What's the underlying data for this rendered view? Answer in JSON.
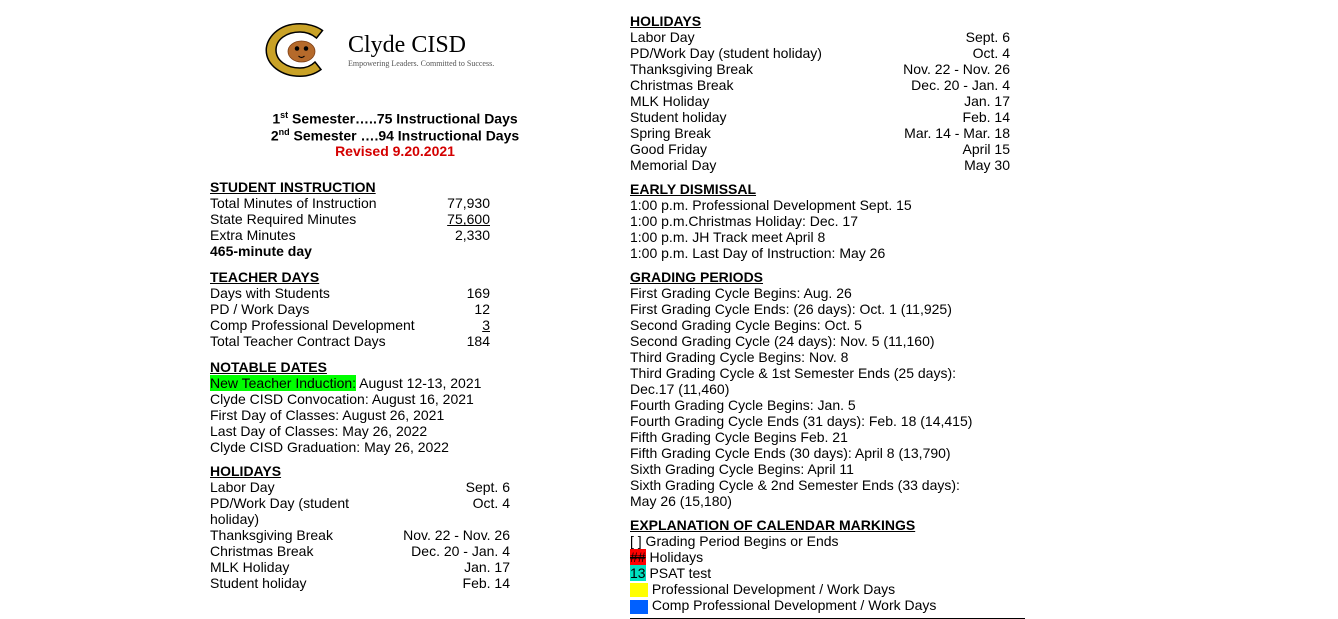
{
  "logo": {
    "title": "Clyde CISD",
    "subtitle": "Empowering Leaders. Committed to Success.",
    "colors": {
      "gold": "#c9a227",
      "brown": "#7a3b12",
      "outline": "#000"
    }
  },
  "semesters": {
    "line1_pre": "1",
    "line1_sup": "st",
    "line1_rest": " Semester…..75 Instructional Days",
    "line2_pre": "2",
    "line2_sup": "nd",
    "line2_rest": " Semester ….94 Instructional Days",
    "revised": "Revised 9.20.2021"
  },
  "student_instruction": {
    "heading": "STUDENT INSTRUCTION",
    "rows": [
      {
        "label": "Total Minutes of Instruction",
        "value": "77,930"
      },
      {
        "label": "State Required Minutes",
        "value": "75,600",
        "underline": true
      },
      {
        "label": "Extra Minutes",
        "value": "2,330"
      }
    ],
    "footer": "465-minute day"
  },
  "teacher_days": {
    "heading": "TEACHER DAYS",
    "rows": [
      {
        "label": "Days with Students",
        "value": "169"
      },
      {
        "label": "PD / Work Days",
        "value": "12"
      },
      {
        "label": "Comp Professional Development",
        "value": "3",
        "underline": true
      },
      {
        "label": "Total Teacher Contract Days",
        "value": "184"
      }
    ]
  },
  "notable": {
    "heading": "NOTABLE DATES",
    "hl_text": "New Teacher Induction:",
    "hl_rest": " August 12-13, 2021",
    "lines": [
      "Clyde CISD Convocation:  August 16, 2021",
      "First Day of Classes:  August 26, 2021",
      "Last Day of Classes:  May 26, 2022",
      "Clyde CISD Graduation:  May 26, 2022"
    ]
  },
  "holidays": {
    "heading": "HOLIDAYS",
    "rows": [
      {
        "label": "Labor Day",
        "value": "Sept. 6"
      },
      {
        "label": "PD/Work Day (student holiday)",
        "value": "Oct. 4"
      },
      {
        "label": "Thanksgiving Break",
        "value": "Nov. 22 - Nov. 26"
      },
      {
        "label": "Christmas Break",
        "value": "Dec. 20 - Jan. 4"
      },
      {
        "label": "MLK Holiday",
        "value": "Jan. 17"
      },
      {
        "label": "Student holiday",
        "value": "Feb. 14"
      },
      {
        "label": "Spring Break",
        "value": "Mar. 14 - Mar. 18"
      },
      {
        "label": "Good Friday",
        "value": "April 15"
      },
      {
        "label": "Memorial Day",
        "value": "May 30"
      }
    ]
  },
  "early_dismissal": {
    "heading": "EARLY DISMISSAL",
    "lines": [
      "1:00 p.m. Professional Development Sept. 15",
      "1:00 p.m.Christmas Holiday:  Dec. 17",
      "1:00 p.m. JH Track meet April 8",
      "1:00 p.m.  Last Day of Instruction:  May 26"
    ]
  },
  "grading": {
    "heading": "GRADING PERIODS",
    "lines": [
      "First Grading Cycle Begins:  Aug. 26",
      "First Grading Cycle Ends: (26 days):  Oct. 1   (11,925)",
      "Second Grading Cycle Begins:  Oct. 5",
      "Second Grading Cycle (24 days):  Nov. 5 (11,160)",
      "Third Grading Cycle Begins:  Nov. 8",
      "Third Grading Cycle & 1st Semester Ends (25 days):",
      "Dec.17   (11,460)",
      "Fourth Grading Cycle Begins:  Jan. 5",
      "Fourth Grading Cycle Ends (31 days):  Feb. 18 (14,415)",
      "Fifth Grading Cycle Begins Feb. 21",
      "Fifth Grading Cycle Ends (30 days):  April 8  (13,790)",
      "Sixth Grading Cycle Begins:  April 11",
      "Sixth Grading Cycle & 2nd Semester Ends (33 days):",
      "May 26   (15,180)"
    ]
  },
  "markings": {
    "heading": "EXPLANATION OF CALENDAR MARKINGS",
    "row1": "[ ] Grading Period Begins or Ends",
    "row2_hl": "##",
    "row2_rest": " Holidays",
    "row3_hl": "13",
    "row3_rest": " PSAT test",
    "row4": " Professional Development / Work Days",
    "row5": " Comp Professional Development / Work Days"
  }
}
